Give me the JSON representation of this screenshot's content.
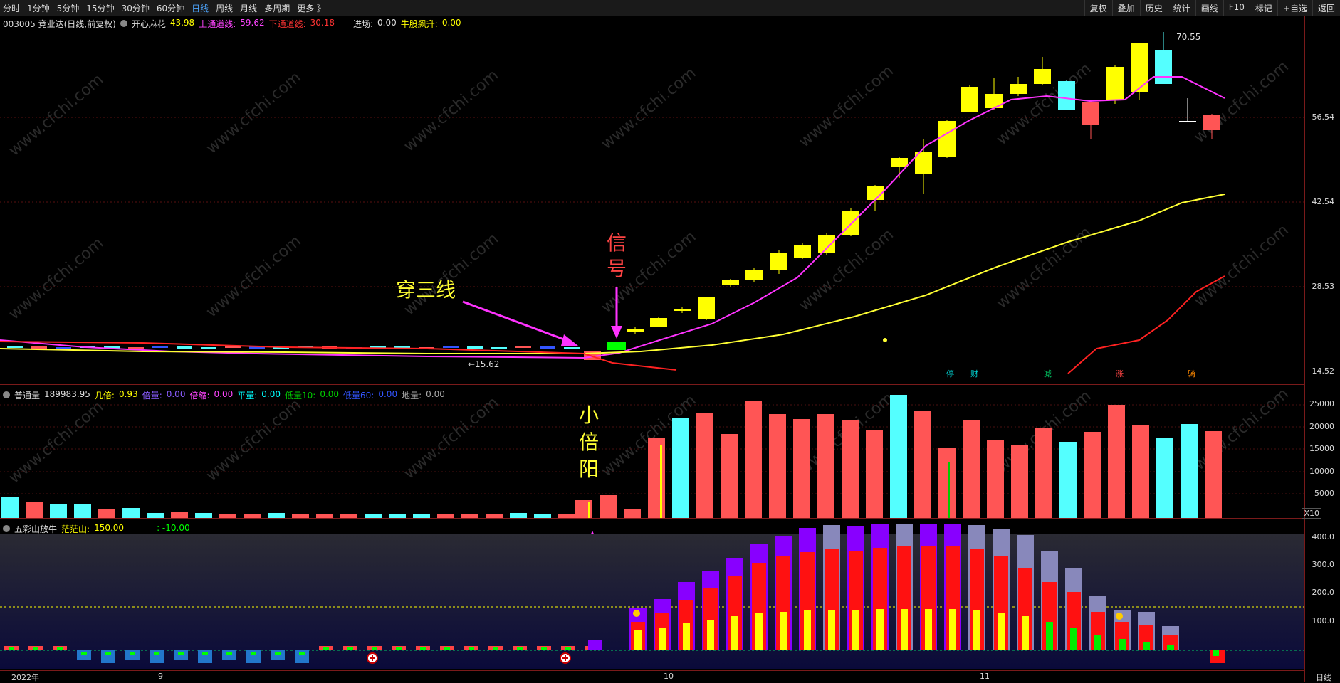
{
  "toolbar": {
    "periods": [
      "分时",
      "1分钟",
      "5分钟",
      "15分钟",
      "30分钟",
      "60分钟",
      "日线",
      "周线",
      "月线",
      "多周期",
      "更多 》"
    ],
    "active_period": "日线",
    "right_buttons": [
      "复权",
      "叠加",
      "历史",
      "统计",
      "画线",
      "F10",
      "标记",
      "+自选",
      "返回"
    ]
  },
  "main_info": {
    "stock": "003005 竞业达(日线,前复权)",
    "indicator": "开心麻花",
    "value": "43.98",
    "upper_label": "上通道线:",
    "upper_value": "59.62",
    "lower_label": "下通道线:",
    "lower_value": "30.18",
    "entry_label": "进场:",
    "entry_value": "0.00",
    "bull_label": "牛股飙升:",
    "bull_value": "0.00"
  },
  "volume_info": {
    "title": "普通量",
    "value": "189983.95",
    "items": [
      {
        "label": "几倍:",
        "value": "0.93",
        "color": "#ffff00"
      },
      {
        "label": "倍量:",
        "value": "0.00",
        "color": "#8a5cff"
      },
      {
        "label": "倍缩:",
        "value": "0.00",
        "color": "#ff44ff"
      },
      {
        "label": "平量:",
        "value": "0.00",
        "color": "#00ffff"
      },
      {
        "label": "低量10:",
        "value": "0.00",
        "color": "#00cc00"
      },
      {
        "label": "低量60:",
        "value": "0.00",
        "color": "#3355ff"
      },
      {
        "label": "地量:",
        "value": "0.00",
        "color": "#aaaaaa"
      }
    ]
  },
  "wucai_info": {
    "title": "五彩山放牛",
    "label1": "茫茫山:",
    "value1": "150.00",
    "value2": ": -10.00"
  },
  "y_axis_main": [
    "70.55",
    "56.54",
    "42.54",
    "28.53",
    "14.52"
  ],
  "y_axis_vol": [
    "25000",
    "20000",
    "15000",
    "10000",
    "5000",
    "X10"
  ],
  "y_axis_wc": [
    "400.0",
    "300.0",
    "200.0",
    "100.0"
  ],
  "x_axis": [
    "2022年",
    "9",
    "10",
    "11",
    "日线"
  ],
  "annotations": {
    "chuan": "穿三线",
    "xinhao": "信号",
    "xiaobeiyang": "小倍阳",
    "low": "←15.62",
    "high": "70.55"
  },
  "event_labels": [
    "停",
    "财",
    "减",
    "涨",
    "骑"
  ],
  "watermark": "www.cfchi.com",
  "colors": {
    "up": "#ffff00",
    "down": "#54ffff",
    "red": "#ff5555",
    "magenta": "#ff33ff",
    "signal": "#00ff00"
  }
}
